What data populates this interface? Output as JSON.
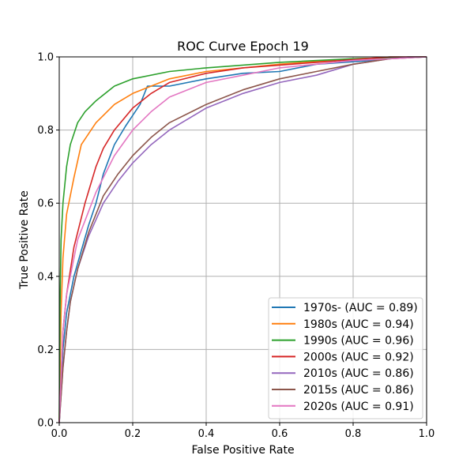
{
  "chart_data": {
    "type": "line",
    "title": "ROC Curve Epoch 19",
    "xlabel": "False Positive Rate",
    "ylabel": "True Positive Rate",
    "xlim": [
      0,
      1
    ],
    "ylim": [
      0,
      1
    ],
    "xticks": [
      "0.0",
      "0.2",
      "0.4",
      "0.6",
      "0.8",
      "1.0"
    ],
    "yticks": [
      "0.0",
      "0.2",
      "0.4",
      "0.6",
      "0.8",
      "1.0"
    ],
    "grid": true,
    "legend_position": "bottom-right",
    "series": [
      {
        "name": "1970s- (AUC = 0.89)",
        "color": "#1f77b4",
        "x": [
          0,
          0.01,
          0.02,
          0.04,
          0.06,
          0.08,
          0.1,
          0.12,
          0.15,
          0.18,
          0.2,
          0.22,
          0.24,
          0.3,
          0.4,
          0.5,
          0.6,
          0.7,
          0.85,
          0.95,
          1
        ],
        "y": [
          0,
          0.2,
          0.3,
          0.4,
          0.47,
          0.54,
          0.6,
          0.68,
          0.76,
          0.81,
          0.84,
          0.87,
          0.92,
          0.92,
          0.94,
          0.955,
          0.96,
          0.98,
          0.99,
          1,
          1
        ]
      },
      {
        "name": "1980s (AUC = 0.94)",
        "color": "#ff7f0e",
        "x": [
          0,
          0.005,
          0.01,
          0.02,
          0.04,
          0.06,
          0.1,
          0.15,
          0.2,
          0.25,
          0.3,
          0.4,
          0.6,
          0.8,
          1
        ],
        "y": [
          0,
          0.3,
          0.45,
          0.57,
          0.67,
          0.76,
          0.82,
          0.87,
          0.9,
          0.92,
          0.94,
          0.96,
          0.98,
          0.995,
          1
        ]
      },
      {
        "name": "1990s (AUC = 0.96)",
        "color": "#2ca02c",
        "x": [
          0,
          0.002,
          0.005,
          0.01,
          0.02,
          0.03,
          0.05,
          0.07,
          0.1,
          0.15,
          0.2,
          0.3,
          0.4,
          0.6,
          0.8,
          1
        ],
        "y": [
          0,
          0.3,
          0.5,
          0.6,
          0.7,
          0.76,
          0.82,
          0.85,
          0.88,
          0.92,
          0.94,
          0.96,
          0.97,
          0.985,
          0.995,
          1
        ]
      },
      {
        "name": "2000s (AUC = 0.92)",
        "color": "#d62728",
        "x": [
          0,
          0.01,
          0.02,
          0.04,
          0.07,
          0.1,
          0.12,
          0.15,
          0.2,
          0.25,
          0.3,
          0.4,
          0.5,
          0.7,
          0.9,
          1
        ],
        "y": [
          0,
          0.25,
          0.35,
          0.48,
          0.6,
          0.7,
          0.75,
          0.8,
          0.86,
          0.9,
          0.93,
          0.955,
          0.97,
          0.985,
          1,
          1
        ]
      },
      {
        "name": "2010s (AUC = 0.86)",
        "color": "#9467bd",
        "x": [
          0,
          0.01,
          0.02,
          0.03,
          0.05,
          0.08,
          0.12,
          0.16,
          0.2,
          0.25,
          0.3,
          0.4,
          0.5,
          0.6,
          0.7,
          0.8,
          0.9,
          1
        ],
        "y": [
          0,
          0.15,
          0.25,
          0.33,
          0.42,
          0.51,
          0.6,
          0.66,
          0.71,
          0.76,
          0.8,
          0.86,
          0.9,
          0.93,
          0.95,
          0.98,
          0.995,
          1
        ]
      },
      {
        "name": "2015s (AUC = 0.86)",
        "color": "#8c564b",
        "x": [
          0,
          0.01,
          0.02,
          0.03,
          0.05,
          0.08,
          0.12,
          0.16,
          0.2,
          0.25,
          0.3,
          0.4,
          0.5,
          0.6,
          0.7,
          0.8,
          0.9,
          1
        ],
        "y": [
          0,
          0.15,
          0.25,
          0.33,
          0.42,
          0.52,
          0.62,
          0.68,
          0.73,
          0.78,
          0.82,
          0.87,
          0.91,
          0.94,
          0.96,
          0.98,
          0.995,
          1
        ]
      },
      {
        "name": "2020s (AUC = 0.91)",
        "color": "#e377c2",
        "x": [
          0,
          0.01,
          0.02,
          0.05,
          0.1,
          0.15,
          0.2,
          0.25,
          0.3,
          0.4,
          0.5,
          0.6,
          0.8,
          1
        ],
        "y": [
          0,
          0.25,
          0.35,
          0.5,
          0.63,
          0.73,
          0.8,
          0.85,
          0.89,
          0.93,
          0.95,
          0.97,
          0.99,
          1
        ]
      }
    ]
  }
}
